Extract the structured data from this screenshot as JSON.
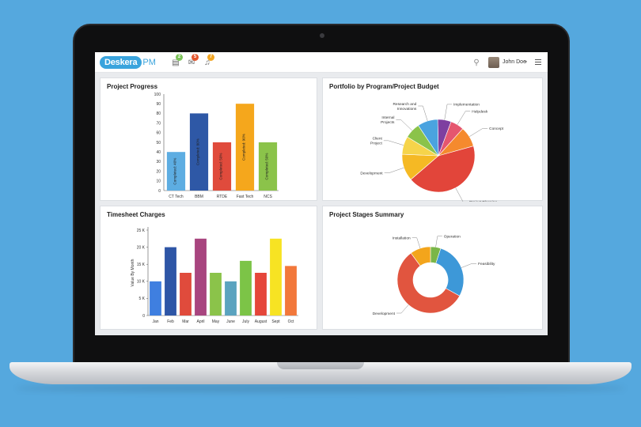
{
  "app": {
    "logo_text": "Deskera",
    "logo_suffix": "PM",
    "toolbar": [
      {
        "icon": "tasks-icon",
        "glyph": "▤",
        "badge": "2",
        "badge_color": "#7cc35a"
      },
      {
        "icon": "mail-icon",
        "glyph": "✉",
        "badge": "5",
        "badge_color": "#e4562d"
      },
      {
        "icon": "bell-icon",
        "glyph": "♫",
        "badge": "7",
        "badge_color": "#f2a623"
      }
    ],
    "user_name": "John Doe"
  },
  "chart_data": [
    {
      "id": "project_progress",
      "type": "bar",
      "title": "Project Progress",
      "categories": [
        "CT Tech",
        "BBM",
        "RTDE",
        "Fast Tech",
        "NCS"
      ],
      "values": [
        40,
        80,
        50,
        90,
        50
      ],
      "bar_labels": [
        "Completed: 40%",
        "Completed: 80%",
        "Completed: 50%",
        "Completed: 90%",
        "Completed: 50%"
      ],
      "colors": [
        "#5dade2",
        "#2e58a6",
        "#e04b3c",
        "#f5a71c",
        "#8bc34a"
      ],
      "ylim": [
        0,
        100
      ],
      "yticks": [
        0,
        10,
        20,
        30,
        40,
        50,
        60,
        70,
        80,
        90,
        100
      ]
    },
    {
      "id": "portfolio_budget",
      "type": "pie",
      "title": "Portfolio by Program/Project Budget",
      "labels": [
        "Implementation",
        "Helpdesk",
        "Concept",
        "Project Planning",
        "Development",
        "Client Project",
        "Internal Projects",
        "Research and Innovations"
      ],
      "values": [
        6,
        6,
        9,
        43,
        12,
        8,
        7,
        9
      ],
      "colors": [
        "#7e3fa0",
        "#e5566f",
        "#f58a2e",
        "#e2453a",
        "#f5b924",
        "#f6d44a",
        "#8bc34a",
        "#4aa3df"
      ]
    },
    {
      "id": "timesheet_charges",
      "type": "bar",
      "title": "Timesheet Charges",
      "ylabel": "Value By Month",
      "categories": [
        "Jan",
        "Feb",
        "Mar",
        "April",
        "May",
        "June",
        "July",
        "August",
        "Sept",
        "Oct"
      ],
      "values": [
        10000,
        20000,
        12500,
        22500,
        12500,
        10000,
        16000,
        12500,
        22500,
        14500
      ],
      "colors": [
        "#3f7fe0",
        "#2e56a6",
        "#e04b3c",
        "#a8457f",
        "#8bc34a",
        "#5aa3bf",
        "#7cc447",
        "#e5463a",
        "#f7e323",
        "#f2783b"
      ],
      "ylim": [
        0,
        25000
      ],
      "yticks": [
        "0",
        "5 K",
        "10 K",
        "15 K",
        "20 K",
        "25 K"
      ]
    },
    {
      "id": "project_stages",
      "type": "pie",
      "title": "Project Stages Summary",
      "labels": [
        "Operation",
        "Feasibility",
        "Development",
        "Installation"
      ],
      "values": [
        5,
        28,
        57,
        10
      ],
      "colors": [
        "#7ab648",
        "#3d98d8",
        "#e1553f",
        "#f3a51c"
      ]
    }
  ]
}
